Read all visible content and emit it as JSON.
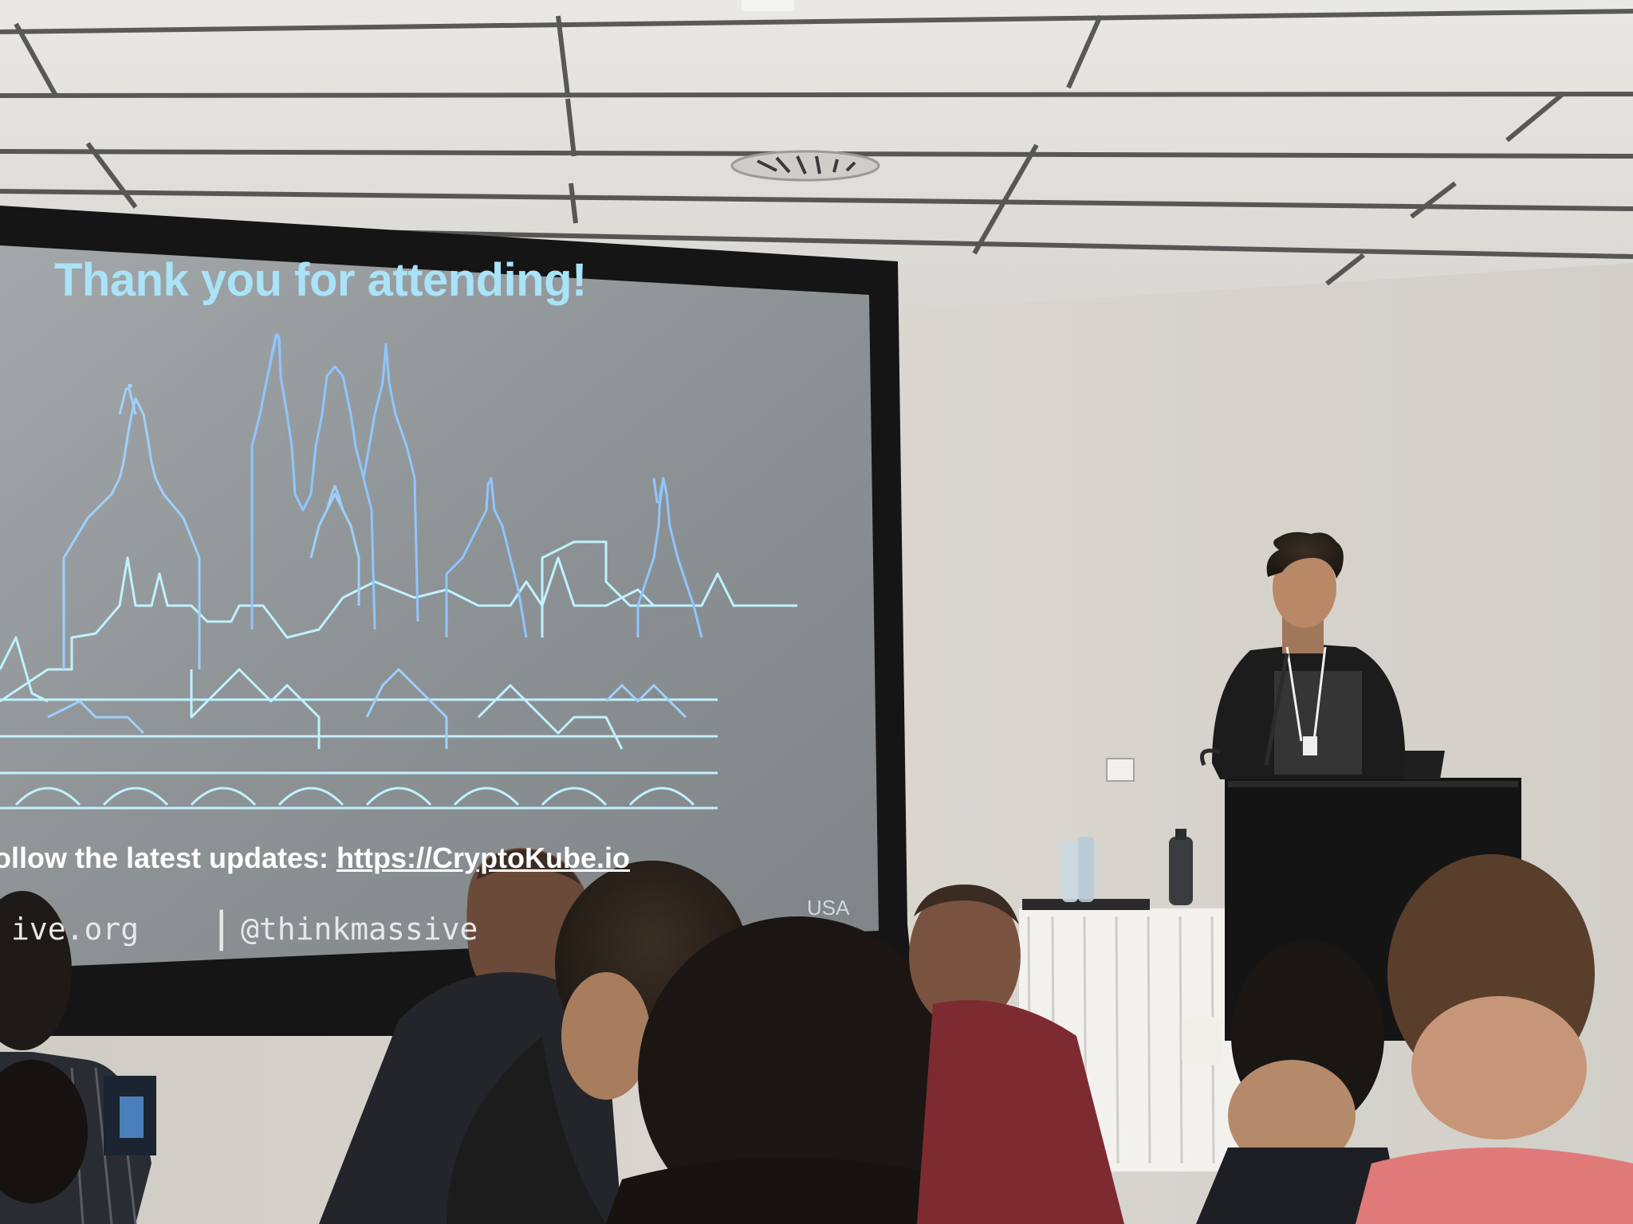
{
  "slide": {
    "title": "Thank you for attending!",
    "follow_text": "ollow the latest updates: ",
    "follow_url": "https://CryptoKube.io",
    "footer_left": "ive.org",
    "footer_separator": "|",
    "footer_right": "@thinkmassive",
    "corner_text": "USA"
  },
  "colors": {
    "slide_background": "#8e9396",
    "skyline_blue": "#8fc6ff",
    "skyline_cyan": "#bff2ff",
    "wall": "#d8d6d2",
    "screen_frame": "#161616"
  }
}
